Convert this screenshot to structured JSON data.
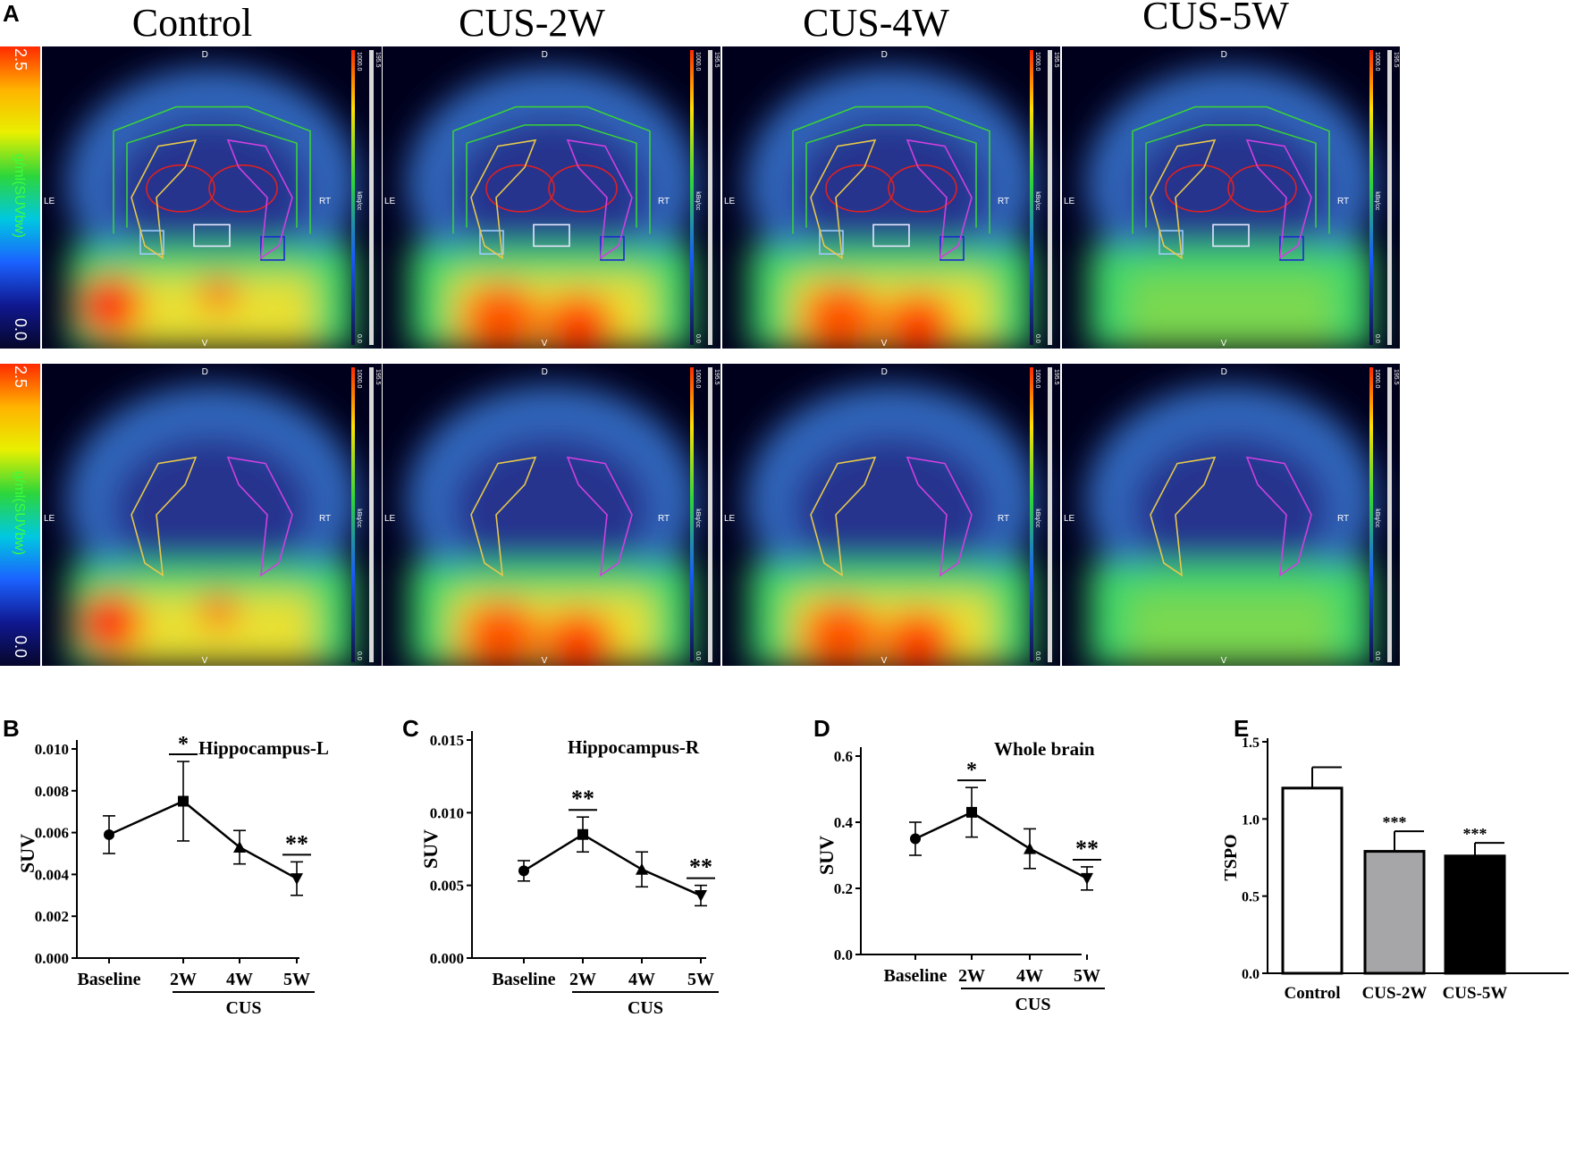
{
  "panel_letters": {
    "A": "A",
    "B": "B",
    "C": "C",
    "D": "D",
    "E": "E"
  },
  "columns": [
    "Control",
    "CUS-2W",
    "CUS-4W",
    "CUS-5W"
  ],
  "pet": {
    "sidebar_label": "g/ml(SUVbw)",
    "sidebar_top": "2.5",
    "sidebar_bottom": "0.0",
    "marker_dorsal": "D",
    "marker_ventral": "V",
    "marker_left": "LE",
    "marker_right": "RT",
    "scale_top": "1000.0",
    "scale_bottom": "0.0",
    "scale_top_2": "195.5",
    "scale_unit": "kBq/cc"
  },
  "colors": {
    "line": "#000000",
    "bar_control": "#ffffff",
    "bar_cus2w": "#a6a6a8",
    "bar_cus5w": "#000000"
  },
  "chart_data": [
    {
      "id": "B",
      "type": "line",
      "title": "Hippocampus-L",
      "ylabel": "SUV",
      "categories": [
        "Baseline",
        "2W",
        "4W",
        "5W"
      ],
      "group_label": "CUS",
      "values": [
        0.0059,
        0.0075,
        0.0053,
        0.0038
      ],
      "errors": [
        0.0009,
        0.0019,
        0.0008,
        0.0008
      ],
      "markers": [
        "circle",
        "square",
        "triangle-up",
        "triangle-down"
      ],
      "ylim": [
        0,
        0.01
      ],
      "yticks": [
        "0.000",
        "0.002",
        "0.004",
        "0.006",
        "0.008",
        "0.010"
      ],
      "yticks_values": [
        0,
        0.002,
        0.004,
        0.006,
        0.008,
        0.01
      ],
      "significance": [
        {
          "category": "2W",
          "label": "*"
        },
        {
          "category": "5W",
          "label": "**"
        }
      ]
    },
    {
      "id": "C",
      "type": "line",
      "title": "Hippocampus-R",
      "ylabel": "SUV",
      "categories": [
        "Baseline",
        "2W",
        "4W",
        "5W"
      ],
      "group_label": "CUS",
      "values": [
        0.006,
        0.0085,
        0.0061,
        0.0043
      ],
      "errors": [
        0.0007,
        0.0012,
        0.0012,
        0.0007
      ],
      "markers": [
        "circle",
        "square",
        "triangle-up",
        "triangle-down"
      ],
      "ylim": [
        0,
        0.015
      ],
      "yticks": [
        "0.000",
        "0.005",
        "0.010",
        "0.015"
      ],
      "yticks_values": [
        0,
        0.005,
        0.01,
        0.015
      ],
      "significance": [
        {
          "category": "2W",
          "label": "**"
        },
        {
          "category": "5W",
          "label": "**"
        }
      ]
    },
    {
      "id": "D",
      "type": "line",
      "title": "Whole brain",
      "ylabel": "SUV",
      "categories": [
        "Baseline",
        "2W",
        "4W",
        "5W"
      ],
      "group_label": "CUS",
      "values": [
        0.35,
        0.43,
        0.32,
        0.23
      ],
      "errors": [
        0.05,
        0.075,
        0.06,
        0.035
      ],
      "markers": [
        "circle",
        "square",
        "triangle-up",
        "triangle-down"
      ],
      "ylim": [
        0,
        0.6
      ],
      "yticks": [
        "0.0",
        "0.2",
        "0.4",
        "0.6"
      ],
      "yticks_values": [
        0,
        0.2,
        0.4,
        0.6
      ],
      "significance": [
        {
          "category": "2W",
          "label": "*"
        },
        {
          "category": "5W",
          "label": "**"
        }
      ]
    },
    {
      "id": "E",
      "type": "bar",
      "title": "",
      "ylabel": "TSPO",
      "categories": [
        "Control",
        "CUS-2W",
        "CUS-5W"
      ],
      "values": [
        1.2,
        0.79,
        0.76
      ],
      "errors": [
        0.135,
        0.13,
        0.085
      ],
      "ylim": [
        0,
        1.5
      ],
      "yticks": [
        "0.0",
        "0.5",
        "1.0",
        "1.5"
      ],
      "yticks_values": [
        0,
        0.5,
        1,
        1.5
      ],
      "significance": [
        {
          "category": "CUS-2W",
          "label": "***"
        },
        {
          "category": "CUS-5W",
          "label": "***"
        }
      ]
    }
  ]
}
